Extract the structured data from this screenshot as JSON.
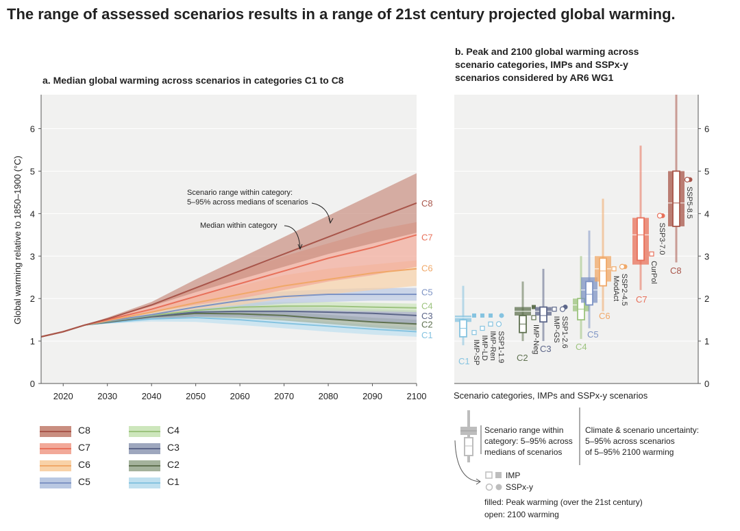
{
  "title": "The range of assessed scenarios results in a range of 21st century projected global warming.",
  "panel_a": {
    "title": "a. Median global warming across scenarios in categories C1 to C8",
    "annotation_range": "Scenario range within category:",
    "annotation_range_2": "5–95% across medians of scenarios",
    "annotation_median": "Median within category"
  },
  "panel_b": {
    "title_line1": "b. Peak and 2100 global warming across",
    "title_line2": "scenario categories, IMPs and SSPx-y",
    "title_line3": "scenarios considered by AR6 WG1",
    "xlabel": "Scenario categories, IMPs and SSPx-y scenarios"
  },
  "legend_a": [
    {
      "label": "C8",
      "band": "#c98e80",
      "line": "#a8554a"
    },
    {
      "label": "C7",
      "band": "#f2a999",
      "line": "#e8705a"
    },
    {
      "label": "C6",
      "band": "#f8d2a8",
      "line": "#f0a868"
    },
    {
      "label": "C5",
      "band": "#b9c8e2",
      "line": "#7d93c4"
    },
    {
      "label": "C4",
      "band": "#cde6bc",
      "line": "#9cc37e"
    },
    {
      "label": "C3",
      "band": "#9ea7be",
      "line": "#5c6689"
    },
    {
      "label": "C2",
      "band": "#a4b29c",
      "line": "#5f7150"
    },
    {
      "label": "C1",
      "band": "#bfe0ef",
      "line": "#85c3e0"
    }
  ],
  "legend_b": {
    "range_text_1": "Scenario range within",
    "range_text_2": "category: 5–95% across",
    "range_text_3": "medians of scenarios",
    "uncert_text_1": "Climate & scenario uncertainty:",
    "uncert_text_2": "5–95% across scenarios",
    "uncert_text_3": "of 5–95% 2100 warming",
    "imp_label": "IMP",
    "ssp_label": "SSPx-y",
    "filled_text": "filled: Peak warming (over the 21st century)",
    "open_text": "open: 2100 warming"
  },
  "chart_data": [
    {
      "type": "area",
      "title": "a. Median global warming across scenarios in categories C1 to C8",
      "xlabel": "",
      "ylabel": "Global warming relative to 1850–1900 (°C)",
      "xlim": [
        2015,
        2100
      ],
      "ylim": [
        0,
        6.8
      ],
      "xticks": [
        2020,
        2030,
        2040,
        2050,
        2060,
        2070,
        2080,
        2090,
        2100
      ],
      "yticks": [
        0,
        1,
        2,
        3,
        4,
        5,
        6
      ],
      "grid": true,
      "x": [
        2015,
        2020,
        2025,
        2030,
        2040,
        2050,
        2060,
        2070,
        2080,
        2090,
        2100
      ],
      "series": [
        {
          "name": "C8",
          "color": "#a8554a",
          "band": "#c98e80",
          "median": [
            1.1,
            1.22,
            1.38,
            1.52,
            1.85,
            2.25,
            2.65,
            3.05,
            3.45,
            3.85,
            4.25
          ],
          "low": [
            1.1,
            1.22,
            1.38,
            1.52,
            1.82,
            2.15,
            2.45,
            2.75,
            3.05,
            3.3,
            3.55
          ],
          "high": [
            1.1,
            1.22,
            1.38,
            1.55,
            1.92,
            2.45,
            2.95,
            3.45,
            3.95,
            4.45,
            4.95
          ]
        },
        {
          "name": "C7",
          "color": "#e8705a",
          "band": "#f2a999",
          "median": [
            1.1,
            1.22,
            1.38,
            1.5,
            1.75,
            2.05,
            2.35,
            2.65,
            2.95,
            3.2,
            3.5
          ],
          "low": [
            1.1,
            1.22,
            1.38,
            1.48,
            1.68,
            1.85,
            2.0,
            2.2,
            2.4,
            2.55,
            2.75
          ],
          "high": [
            1.1,
            1.22,
            1.38,
            1.53,
            1.85,
            2.25,
            2.65,
            3.0,
            3.3,
            3.6,
            3.8
          ]
        },
        {
          "name": "C6",
          "color": "#f0a868",
          "band": "#f8d2a8",
          "median": [
            1.1,
            1.22,
            1.38,
            1.48,
            1.68,
            1.9,
            2.1,
            2.3,
            2.45,
            2.6,
            2.7
          ],
          "low": [
            1.1,
            1.22,
            1.38,
            1.46,
            1.6,
            1.75,
            1.85,
            2.0,
            2.1,
            2.2,
            2.3
          ],
          "high": [
            1.1,
            1.22,
            1.38,
            1.5,
            1.75,
            2.05,
            2.3,
            2.55,
            2.7,
            2.8,
            2.9
          ]
        },
        {
          "name": "C5",
          "color": "#7d93c4",
          "band": "#b9c8e2",
          "median": [
            1.1,
            1.22,
            1.38,
            1.47,
            1.62,
            1.8,
            1.95,
            2.05,
            2.1,
            2.1,
            2.1
          ],
          "low": [
            1.1,
            1.22,
            1.38,
            1.45,
            1.56,
            1.68,
            1.8,
            1.88,
            1.92,
            1.95,
            1.95
          ],
          "high": [
            1.1,
            1.22,
            1.38,
            1.5,
            1.68,
            1.9,
            2.07,
            2.17,
            2.22,
            2.25,
            2.25
          ]
        },
        {
          "name": "C4",
          "color": "#9cc37e",
          "band": "#cde6bc",
          "median": [
            1.1,
            1.22,
            1.38,
            1.46,
            1.6,
            1.72,
            1.8,
            1.82,
            1.82,
            1.8,
            1.78
          ],
          "low": [
            1.1,
            1.22,
            1.38,
            1.44,
            1.55,
            1.65,
            1.7,
            1.72,
            1.72,
            1.7,
            1.68
          ],
          "high": [
            1.1,
            1.22,
            1.38,
            1.48,
            1.65,
            1.8,
            1.9,
            1.92,
            1.92,
            1.9,
            1.88
          ]
        },
        {
          "name": "C3",
          "color": "#5c6689",
          "band": "#9ea7be",
          "median": [
            1.1,
            1.22,
            1.38,
            1.45,
            1.58,
            1.68,
            1.7,
            1.7,
            1.68,
            1.65,
            1.6
          ],
          "low": [
            1.1,
            1.22,
            1.38,
            1.43,
            1.52,
            1.58,
            1.58,
            1.55,
            1.5,
            1.45,
            1.4
          ],
          "high": [
            1.1,
            1.22,
            1.38,
            1.47,
            1.64,
            1.76,
            1.8,
            1.8,
            1.78,
            1.75,
            1.72
          ]
        },
        {
          "name": "C2",
          "color": "#5f7150",
          "band": "#a4b29c",
          "median": [
            1.1,
            1.22,
            1.38,
            1.44,
            1.57,
            1.65,
            1.64,
            1.6,
            1.52,
            1.45,
            1.4
          ],
          "low": [
            1.1,
            1.22,
            1.38,
            1.42,
            1.52,
            1.57,
            1.54,
            1.48,
            1.4,
            1.32,
            1.25
          ],
          "high": [
            1.1,
            1.22,
            1.38,
            1.46,
            1.62,
            1.72,
            1.72,
            1.68,
            1.62,
            1.55,
            1.5
          ]
        },
        {
          "name": "C1",
          "color": "#85c3e0",
          "band": "#bfe0ef",
          "median": [
            1.1,
            1.22,
            1.38,
            1.43,
            1.52,
            1.55,
            1.5,
            1.42,
            1.35,
            1.28,
            1.22
          ],
          "low": [
            1.1,
            1.22,
            1.38,
            1.41,
            1.46,
            1.45,
            1.38,
            1.3,
            1.22,
            1.15,
            1.1
          ],
          "high": [
            1.1,
            1.22,
            1.38,
            1.45,
            1.57,
            1.62,
            1.58,
            1.52,
            1.45,
            1.38,
            1.32
          ]
        }
      ]
    },
    {
      "type": "box",
      "title": "b. Peak and 2100 global warming across scenario categories, IMPs and SSPx-y scenarios considered by AR6 WG1",
      "xlabel": "Scenario categories, IMPs and SSPx-y scenarios",
      "ylim": [
        0,
        6.8
      ],
      "yticks": [
        0,
        1,
        2,
        3,
        4,
        5,
        6
      ],
      "categories": [
        {
          "name": "C1",
          "color": "#85c3e0",
          "peak_range": [
            1.45,
            1.6
          ],
          "peak_median": 1.55,
          "box_2100": [
            1.1,
            1.5
          ],
          "median_2100": 1.3,
          "whisker": [
            0.9,
            2.3
          ],
          "imps": [
            {
              "name": "IMP-SP",
              "peak": 1.6,
              "y2100": 1.2
            },
            {
              "name": "IMP-LD",
              "peak": 1.6,
              "y2100": 1.3
            },
            {
              "name": "IMP-Ren",
              "peak": 1.6,
              "y2100": 1.4
            }
          ],
          "ssps": [
            {
              "name": "SSP1-1.9",
              "peak": 1.6,
              "y2100": 1.4
            }
          ]
        },
        {
          "name": "C2",
          "color": "#5f7150",
          "peak_range": [
            1.6,
            1.8
          ],
          "peak_median": 1.7,
          "box_2100": [
            1.2,
            1.6
          ],
          "median_2100": 1.4,
          "whisker": [
            1.0,
            2.4
          ],
          "imps": [
            {
              "name": "IMP-Neg",
              "peak": 1.8,
              "y2100": 1.55
            }
          ],
          "ssps": []
        },
        {
          "name": "C3",
          "color": "#5c6689",
          "peak_range": [
            1.6,
            1.8
          ],
          "peak_median": 1.7,
          "box_2100": [
            1.45,
            1.8
          ],
          "median_2100": 1.6,
          "whisker": [
            1.0,
            2.7
          ],
          "imps": [
            {
              "name": "IMP-GS",
              "peak": 1.75,
              "y2100": 1.75
            }
          ],
          "ssps": [
            {
              "name": "SSP1-2.6",
              "peak": 1.8,
              "y2100": 1.75
            }
          ]
        },
        {
          "name": "C4",
          "color": "#9cc37e",
          "peak_range": [
            1.7,
            2.0
          ],
          "peak_median": 1.85,
          "box_2100": [
            1.5,
            2.0
          ],
          "median_2100": 1.75,
          "whisker": [
            1.05,
            3.0
          ],
          "imps": [],
          "ssps": []
        },
        {
          "name": "C5",
          "color": "#7d93c4",
          "peak_range": [
            1.9,
            2.5
          ],
          "peak_median": 2.2,
          "box_2100": [
            1.85,
            2.4
          ],
          "median_2100": 2.1,
          "whisker": [
            1.3,
            3.6
          ],
          "imps": [],
          "ssps": []
        },
        {
          "name": "C6",
          "color": "#f0a868",
          "peak_range": [
            2.4,
            3.0
          ],
          "peak_median": 2.7,
          "box_2100": [
            2.3,
            2.95
          ],
          "median_2100": 2.65,
          "whisker": [
            1.7,
            4.35
          ],
          "imps": [
            {
              "name": "ModAct",
              "peak": 2.7,
              "y2100": 2.7
            }
          ],
          "ssps": [
            {
              "name": "SSP2-4.5",
              "peak": 2.75,
              "y2100": 2.75
            }
          ]
        },
        {
          "name": "C7",
          "color": "#e8705a",
          "peak_range": [
            2.8,
            3.9
          ],
          "peak_median": 3.5,
          "box_2100": [
            2.9,
            3.9
          ],
          "median_2100": 3.5,
          "whisker": [
            2.2,
            5.6
          ],
          "imps": [
            {
              "name": "CurPol",
              "peak": 3.05,
              "y2100": 3.05
            }
          ],
          "ssps": [
            {
              "name": "SSP3-7.0",
              "peak": 3.95,
              "y2100": 3.95
            }
          ]
        },
        {
          "name": "C8",
          "color": "#a8554a",
          "peak_range": [
            3.7,
            5.0
          ],
          "peak_median": 4.25,
          "box_2100": [
            3.7,
            5.0
          ],
          "median_2100": 4.25,
          "whisker": [
            2.85,
            6.8
          ],
          "imps": [],
          "ssps": [
            {
              "name": "SSP5-8.5",
              "peak": 4.8,
              "y2100": 4.8
            }
          ]
        }
      ]
    }
  ]
}
